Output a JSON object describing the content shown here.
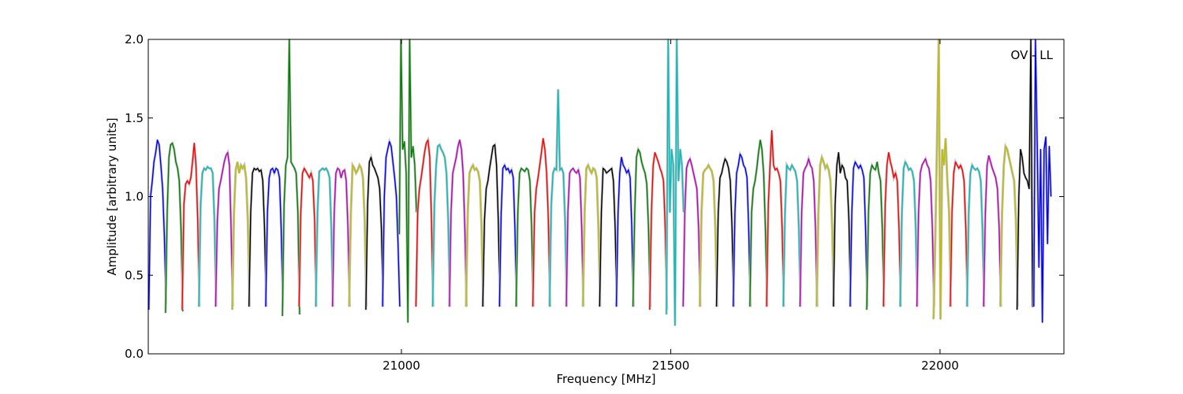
{
  "chart_data": {
    "type": "line",
    "title": "",
    "xlabel": "Frequency [MHz]",
    "ylabel": "Amplitude [arbitrary units]",
    "xlim": [
      20530,
      22230
    ],
    "ylim": [
      0.0,
      2.0
    ],
    "x_ticks": [
      21000,
      21500,
      22000
    ],
    "x_tick_labels": [
      "21000",
      "21500",
      "22000"
    ],
    "y_ticks": [
      0.0,
      0.5,
      1.0,
      1.5,
      2.0
    ],
    "y_tick_labels": [
      "0.0",
      "0.5",
      "1.0",
      "1.5",
      "2.0"
    ],
    "grid": false,
    "legend": "none",
    "annotation": "OV - LL",
    "channel_width_mhz": 32,
    "colors": [
      "#0000ff",
      "#008000",
      "#ff0000",
      "#00bfbf",
      "#bf00bf",
      "#bfbf00",
      "#000000"
    ],
    "background_color": "#c0c0c0",
    "series": [
      {
        "start": 20531,
        "values": [
          0.28,
          1.0,
          1.1,
          1.22,
          1.28,
          1.36,
          1.33,
          1.2,
          1.05,
          0.75,
          0.32
        ],
        "color": "#0000ff"
      },
      {
        "start": 20562,
        "values": [
          0.26,
          0.9,
          1.25,
          1.33,
          1.34,
          1.3,
          1.22,
          1.18,
          1.1,
          0.8,
          0.27
        ],
        "color": "#008000"
      },
      {
        "start": 20593,
        "values": [
          0.28,
          0.95,
          1.08,
          1.1,
          1.08,
          1.12,
          1.22,
          1.34,
          1.2,
          0.85,
          0.3
        ],
        "color": "#ff0000"
      },
      {
        "start": 20624,
        "values": [
          0.3,
          0.95,
          1.15,
          1.18,
          1.17,
          1.19,
          1.18,
          1.18,
          1.15,
          0.85,
          0.3
        ],
        "color": "#00bfbf"
      },
      {
        "start": 20655,
        "values": [
          0.3,
          0.85,
          1.05,
          1.1,
          1.16,
          1.22,
          1.26,
          1.28,
          1.2,
          0.8,
          0.3
        ],
        "color": "#bf00bf"
      },
      {
        "start": 20686,
        "values": [
          0.28,
          0.9,
          1.17,
          1.22,
          1.15,
          1.2,
          1.18,
          1.2,
          1.12,
          0.85,
          0.3
        ],
        "color": "#bfbf00"
      },
      {
        "start": 20717,
        "values": [
          0.3,
          0.9,
          1.15,
          1.18,
          1.17,
          1.18,
          1.16,
          1.17,
          1.1,
          0.8,
          0.3
        ],
        "color": "#000000"
      },
      {
        "start": 20748,
        "values": [
          0.3,
          0.9,
          1.12,
          1.17,
          1.18,
          1.15,
          1.18,
          1.17,
          1.12,
          0.8,
          0.3
        ],
        "color": "#0000ff"
      },
      {
        "start": 20779,
        "values": [
          0.24,
          0.95,
          1.2,
          1.25,
          2.0,
          1.22,
          1.2,
          1.18,
          1.15,
          0.9,
          0.25
        ],
        "color": "#008000"
      },
      {
        "start": 20810,
        "values": [
          0.3,
          0.9,
          1.15,
          1.18,
          1.16,
          1.14,
          1.12,
          1.15,
          1.1,
          0.85,
          0.3
        ],
        "color": "#ff0000"
      },
      {
        "start": 20841,
        "values": [
          0.3,
          0.9,
          1.16,
          1.17,
          1.18,
          1.17,
          1.18,
          1.16,
          1.12,
          0.8,
          0.3
        ],
        "color": "#00bfbf"
      },
      {
        "start": 20872,
        "values": [
          0.3,
          0.9,
          1.15,
          1.18,
          1.17,
          1.12,
          1.16,
          1.17,
          1.1,
          0.8,
          0.3
        ],
        "color": "#bf00bf"
      },
      {
        "start": 20903,
        "values": [
          0.3,
          0.9,
          1.2,
          1.18,
          1.15,
          1.17,
          1.2,
          1.18,
          1.12,
          0.85,
          0.3
        ],
        "color": "#bfbf00"
      },
      {
        "start": 20934,
        "values": [
          0.28,
          0.95,
          1.22,
          1.25,
          1.2,
          1.18,
          1.15,
          1.12,
          1.05,
          0.8,
          0.3
        ],
        "color": "#000000"
      },
      {
        "start": 20965,
        "values": [
          0.3,
          1.0,
          1.25,
          1.3,
          1.35,
          1.32,
          1.22,
          1.12,
          1.0,
          0.7,
          0.3
        ],
        "color": "#0000ff"
      },
      {
        "start": 20996,
        "values": [
          0.76,
          2.0,
          1.3,
          1.35,
          1.15,
          0.2,
          2.0,
          1.25,
          1.32,
          1.2,
          0.9
        ],
        "color": "#008000"
      },
      {
        "start": 21027,
        "values": [
          0.3,
          0.9,
          1.05,
          1.12,
          1.2,
          1.28,
          1.34,
          1.36,
          1.25,
          0.85,
          0.3
        ],
        "color": "#ff0000"
      },
      {
        "start": 21058,
        "values": [
          0.3,
          0.95,
          1.2,
          1.32,
          1.33,
          1.3,
          1.28,
          1.25,
          1.15,
          0.85,
          0.3
        ],
        "color": "#00bfbf"
      },
      {
        "start": 21089,
        "values": [
          0.3,
          0.9,
          1.15,
          1.2,
          1.25,
          1.32,
          1.36,
          1.3,
          1.15,
          0.8,
          0.3
        ],
        "color": "#bf00bf"
      },
      {
        "start": 21120,
        "values": [
          0.3,
          0.9,
          1.15,
          1.18,
          1.2,
          1.17,
          1.18,
          1.16,
          1.1,
          0.8,
          0.3
        ],
        "color": "#bfbf00"
      },
      {
        "start": 21151,
        "values": [
          0.3,
          0.85,
          1.05,
          1.1,
          1.18,
          1.25,
          1.32,
          1.33,
          1.2,
          0.85,
          0.3
        ],
        "color": "#000000"
      },
      {
        "start": 21182,
        "values": [
          0.3,
          0.9,
          1.18,
          1.2,
          1.17,
          1.18,
          1.15,
          1.17,
          1.12,
          0.8,
          0.3
        ],
        "color": "#0000ff"
      },
      {
        "start": 21213,
        "values": [
          0.3,
          0.9,
          1.15,
          1.18,
          1.17,
          1.16,
          1.18,
          1.17,
          1.1,
          0.8,
          0.3
        ],
        "color": "#008000"
      },
      {
        "start": 21244,
        "values": [
          0.3,
          0.9,
          1.05,
          1.12,
          1.2,
          1.28,
          1.37,
          1.3,
          1.15,
          0.85,
          0.3
        ],
        "color": "#ff0000"
      },
      {
        "start": 21275,
        "values": [
          0.3,
          0.95,
          1.15,
          1.18,
          1.17,
          1.68,
          1.17,
          1.18,
          1.15,
          0.85,
          0.3
        ],
        "color": "#00bfbf"
      },
      {
        "start": 21306,
        "values": [
          0.3,
          0.9,
          1.15,
          1.17,
          1.18,
          1.16,
          1.15,
          1.17,
          1.12,
          0.8,
          0.3
        ],
        "color": "#bf00bf"
      },
      {
        "start": 21337,
        "values": [
          0.3,
          0.9,
          1.18,
          1.2,
          1.17,
          1.15,
          1.18,
          1.17,
          1.12,
          0.8,
          0.3
        ],
        "color": "#bfbf00"
      },
      {
        "start": 21368,
        "values": [
          0.3,
          0.9,
          1.18,
          1.17,
          1.15,
          1.16,
          1.17,
          1.18,
          1.1,
          0.8,
          0.3
        ],
        "color": "#000000"
      },
      {
        "start": 21399,
        "values": [
          0.3,
          0.9,
          1.15,
          1.25,
          1.2,
          1.18,
          1.15,
          1.17,
          1.12,
          0.8,
          0.3
        ],
        "color": "#0000ff"
      },
      {
        "start": 21430,
        "values": [
          0.3,
          0.9,
          1.25,
          1.3,
          1.28,
          1.22,
          1.18,
          1.15,
          1.08,
          0.8,
          0.3
        ],
        "color": "#008000"
      },
      {
        "start": 21461,
        "values": [
          0.28,
          0.9,
          1.2,
          1.28,
          1.25,
          1.22,
          1.18,
          1.15,
          1.1,
          0.8,
          0.28
        ],
        "color": "#ff0000"
      },
      {
        "start": 21492,
        "values": [
          0.25,
          2.0,
          0.9,
          1.3,
          1.2,
          0.18,
          2.0,
          1.1,
          1.3,
          1.2,
          0.9
        ],
        "color": "#00bfbf"
      },
      {
        "start": 21523,
        "values": [
          0.3,
          0.9,
          1.18,
          1.22,
          1.24,
          1.2,
          1.15,
          1.1,
          1.05,
          0.8,
          0.3
        ],
        "color": "#bf00bf"
      },
      {
        "start": 21554,
        "values": [
          0.3,
          0.9,
          1.15,
          1.17,
          1.18,
          1.2,
          1.18,
          1.16,
          1.1,
          0.8,
          0.3
        ],
        "color": "#bfbf00"
      },
      {
        "start": 21585,
        "values": [
          0.3,
          0.9,
          1.12,
          1.15,
          1.2,
          1.24,
          1.22,
          1.18,
          1.1,
          0.8,
          0.3
        ],
        "color": "#000000"
      },
      {
        "start": 21616,
        "values": [
          0.3,
          0.9,
          1.15,
          1.2,
          1.27,
          1.25,
          1.2,
          1.18,
          1.12,
          0.8,
          0.3
        ],
        "color": "#0000ff"
      },
      {
        "start": 21647,
        "values": [
          0.3,
          0.9,
          1.05,
          1.1,
          1.18,
          1.28,
          1.36,
          1.3,
          1.15,
          0.8,
          0.3
        ],
        "color": "#008000"
      },
      {
        "start": 21678,
        "values": [
          0.3,
          0.95,
          1.2,
          1.42,
          1.2,
          1.17,
          1.18,
          1.15,
          1.1,
          0.8,
          0.3
        ],
        "color": "#ff0000"
      },
      {
        "start": 21709,
        "values": [
          0.3,
          0.9,
          1.2,
          1.18,
          1.17,
          1.2,
          1.18,
          1.16,
          1.1,
          0.8,
          0.3
        ],
        "color": "#00bfbf"
      },
      {
        "start": 21740,
        "values": [
          0.3,
          0.9,
          1.15,
          1.18,
          1.2,
          1.24,
          1.2,
          1.18,
          1.1,
          0.8,
          0.3
        ],
        "color": "#bf00bf"
      },
      {
        "start": 21771,
        "values": [
          0.3,
          0.9,
          1.2,
          1.25,
          1.22,
          1.18,
          1.2,
          1.17,
          1.1,
          0.8,
          0.3
        ],
        "color": "#bfbf00"
      },
      {
        "start": 21802,
        "values": [
          0.3,
          0.95,
          1.2,
          1.28,
          1.15,
          1.2,
          1.18,
          1.12,
          1.1,
          0.85,
          0.3
        ],
        "color": "#000000"
      },
      {
        "start": 21833,
        "values": [
          0.3,
          0.9,
          1.18,
          1.22,
          1.2,
          1.18,
          1.2,
          1.17,
          1.12,
          0.8,
          0.3
        ],
        "color": "#0000ff"
      },
      {
        "start": 21864,
        "values": [
          0.28,
          0.9,
          1.15,
          1.2,
          1.18,
          1.17,
          1.22,
          1.15,
          1.1,
          0.8,
          0.3
        ],
        "color": "#008000"
      },
      {
        "start": 21895,
        "values": [
          0.3,
          0.95,
          1.2,
          1.28,
          1.22,
          1.18,
          1.12,
          1.15,
          1.1,
          0.8,
          0.3
        ],
        "color": "#ff0000"
      },
      {
        "start": 21926,
        "values": [
          0.3,
          0.9,
          1.18,
          1.22,
          1.2,
          1.17,
          1.18,
          1.16,
          1.1,
          0.8,
          0.3
        ],
        "color": "#00bfbf"
      },
      {
        "start": 21957,
        "values": [
          0.3,
          0.9,
          1.15,
          1.2,
          1.22,
          1.24,
          1.2,
          1.18,
          1.1,
          0.8,
          0.3
        ],
        "color": "#bf00bf"
      },
      {
        "start": 21988,
        "values": [
          0.22,
          0.73,
          1.35,
          2.0,
          0.22,
          1.3,
          1.2,
          1.37,
          1.1,
          0.9,
          0.3
        ],
        "color": "#bfbf00"
      },
      {
        "start": 22019,
        "values": [
          0.3,
          0.9,
          1.15,
          1.22,
          1.2,
          1.18,
          1.2,
          1.17,
          1.1,
          0.8,
          0.3
        ],
        "color": "#ff0000"
      },
      {
        "start": 22050,
        "values": [
          0.3,
          0.9,
          1.15,
          1.2,
          1.18,
          1.17,
          1.18,
          1.16,
          1.1,
          0.8,
          0.3
        ],
        "color": "#00bfbf"
      },
      {
        "start": 22081,
        "values": [
          0.3,
          0.9,
          1.2,
          1.26,
          1.22,
          1.18,
          1.15,
          1.12,
          1.05,
          0.8,
          0.3
        ],
        "color": "#bf00bf"
      },
      {
        "start": 22112,
        "values": [
          0.3,
          0.9,
          1.2,
          1.32,
          1.3,
          1.25,
          1.2,
          1.15,
          1.1,
          0.85,
          0.3
        ],
        "color": "#bfbf00"
      },
      {
        "start": 22143,
        "values": [
          0.28,
          1.0,
          1.3,
          1.25,
          1.15,
          1.12,
          1.1,
          1.05,
          2.0,
          0.3,
          1.0
        ],
        "color": "#000000"
      },
      {
        "start": 22174,
        "values": [
          0.3,
          2.0,
          1.35,
          0.55,
          1.3,
          0.2,
          1.3,
          1.38,
          0.7,
          1.32,
          1.0
        ],
        "color": "#0000ff"
      }
    ]
  }
}
